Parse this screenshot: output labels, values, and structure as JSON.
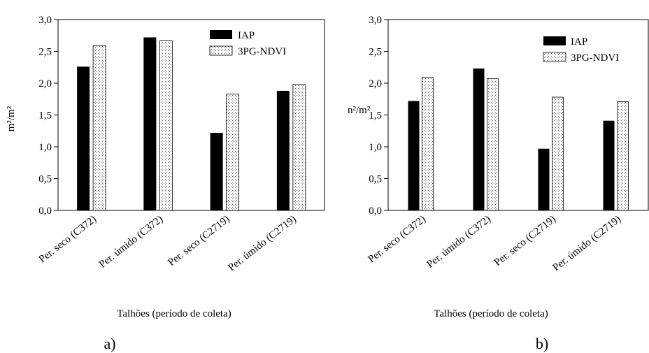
{
  "panels": [
    {
      "panel_label": "a)",
      "chart_data": {
        "type": "bar",
        "categories": [
          "Per. seco (C372)",
          "Per. úmido (C372)",
          "Per. seco (C2719)",
          "Per. úmido (C2719)"
        ],
        "series": [
          {
            "name": "IAP",
            "values": [
              2.26,
              2.72,
              1.22,
              1.88
            ]
          },
          {
            "name": "3PG-NDVI",
            "values": [
              2.59,
              2.67,
              1.83,
              1.98
            ]
          }
        ],
        "xlabel": "Talhões (período de coleta)",
        "ylabel": "m²/m²",
        "ylim": [
          0,
          3.0
        ],
        "yticks": [
          "0,0",
          "0,5",
          "1,0",
          "1,5",
          "2,0",
          "2,5",
          "3,0"
        ],
        "legend_position": "top-right",
        "grid": false
      }
    },
    {
      "panel_label": "b)",
      "chart_data": {
        "type": "bar",
        "categories": [
          "Per. seco (C372)",
          "Per. úmido (C372)",
          "Per. seco (C2719)",
          "Per. úmido (C2719)"
        ],
        "series": [
          {
            "name": "IAP",
            "values": [
              1.72,
              2.23,
              0.97,
              1.41
            ]
          },
          {
            "name": "3PG-NDVI",
            "values": [
              2.09,
              2.07,
              1.78,
              1.71
            ]
          }
        ],
        "xlabel": "Talhões (período de coleta)",
        "ylabel": "n²/m²",
        "ylim": [
          0,
          3.0
        ],
        "yticks": [
          "0,0",
          "0,5",
          "1,0",
          "1,5",
          "2,0",
          "2,5",
          "3,0"
        ],
        "legend_position": "top-right",
        "grid": false
      }
    }
  ],
  "colors": {
    "iap": "#000000",
    "ndvi_fill": "#ffffff",
    "ndvi_dots": "#555555",
    "axis": "#000000"
  }
}
